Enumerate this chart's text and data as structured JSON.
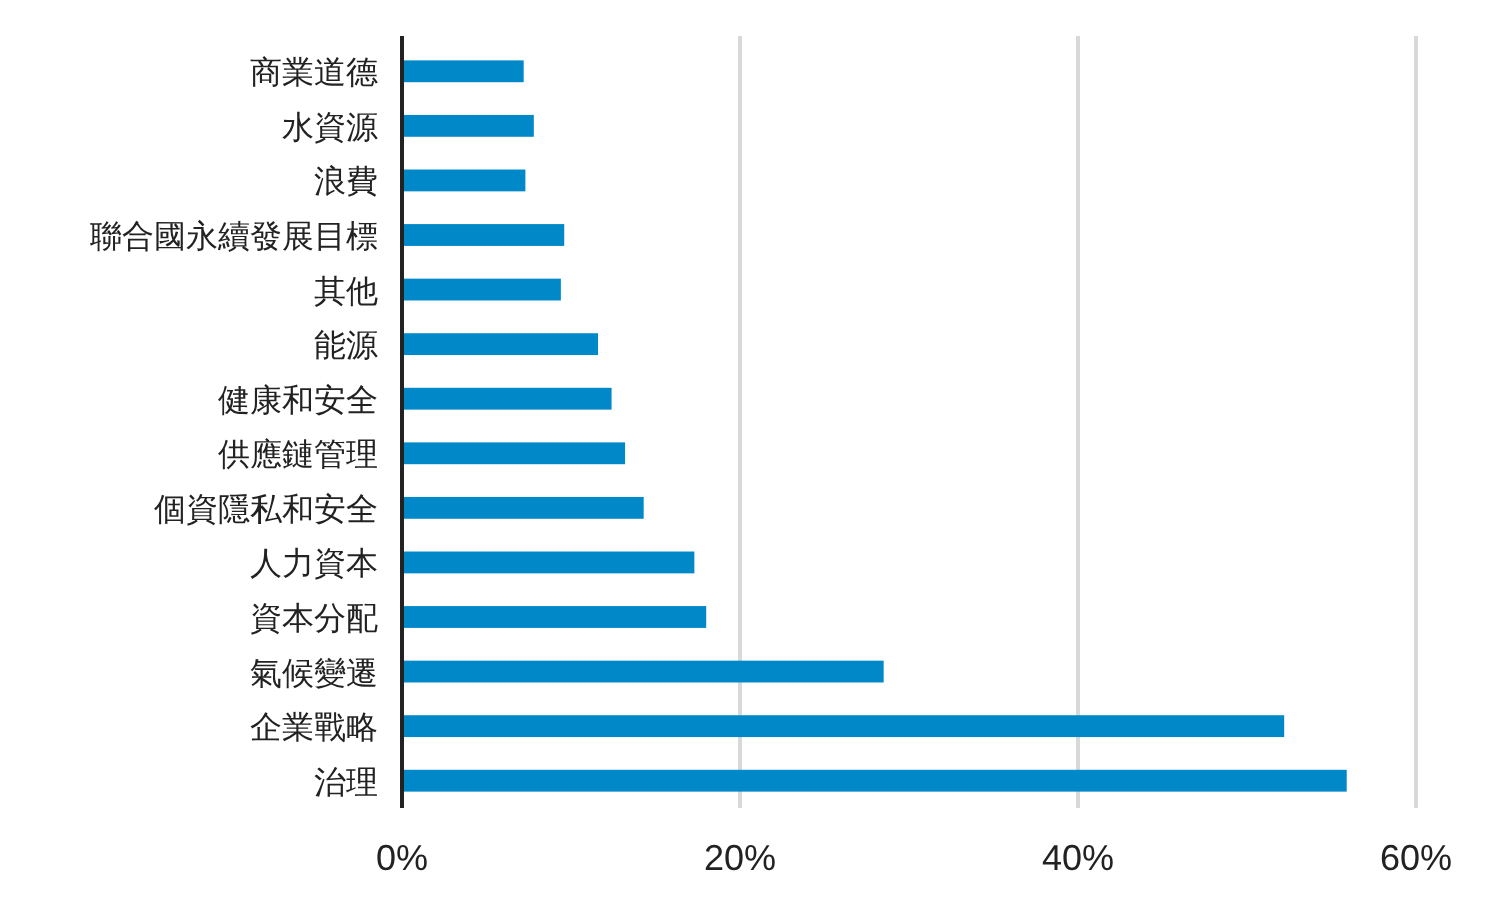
{
  "chart_data": {
    "type": "bar",
    "orientation": "horizontal",
    "categories": [
      "商業道德",
      "水資源",
      "浪費",
      "聯合國永續發展目標",
      "其他",
      "能源",
      "健康和安全",
      "供應鏈管理",
      "個資隱私和安全",
      "人力資本",
      "資本分配",
      "氣候變遷",
      "企業戰略",
      "治理"
    ],
    "values": [
      7.2,
      7.8,
      7.3,
      9.6,
      9.4,
      11.6,
      12.4,
      13.2,
      14.3,
      17.3,
      18.0,
      28.5,
      52.2,
      55.9
    ],
    "color": "#0088c8",
    "xlim": [
      0,
      60
    ],
    "xticks": [
      {
        "value": 0,
        "label": "0%"
      },
      {
        "value": 20,
        "label": "20%"
      },
      {
        "value": 40,
        "label": "40%"
      },
      {
        "value": 60,
        "label": "60%"
      }
    ],
    "grid": "x"
  }
}
